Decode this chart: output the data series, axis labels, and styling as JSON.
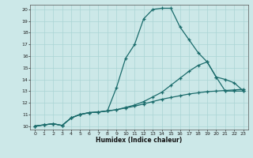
{
  "xlabel": "Humidex (Indice chaleur)",
  "bg_color": "#cce8e8",
  "grid_color": "#aad4d4",
  "line_color": "#1a6b6b",
  "xlim": [
    -0.5,
    23.5
  ],
  "ylim": [
    9.7,
    20.4
  ],
  "xticks": [
    0,
    1,
    2,
    3,
    4,
    5,
    6,
    7,
    8,
    9,
    10,
    11,
    12,
    13,
    14,
    15,
    16,
    17,
    18,
    19,
    20,
    21,
    22,
    23
  ],
  "yticks": [
    10,
    11,
    12,
    13,
    14,
    15,
    16,
    17,
    18,
    19,
    20
  ],
  "line1_x": [
    0,
    1,
    2,
    3,
    4,
    5,
    6,
    7,
    8,
    9,
    10,
    11,
    12,
    13,
    14,
    15,
    16,
    17,
    18,
    19,
    20,
    21,
    22,
    23
  ],
  "line1_y": [
    10.0,
    10.1,
    10.2,
    10.05,
    10.7,
    11.0,
    11.15,
    11.2,
    11.3,
    13.3,
    15.8,
    17.0,
    19.2,
    20.0,
    20.1,
    20.1,
    18.5,
    17.4,
    16.3,
    15.5,
    14.2,
    13.0,
    13.0,
    13.0
  ],
  "line2_x": [
    0,
    1,
    2,
    3,
    4,
    5,
    6,
    7,
    8,
    9,
    10,
    11,
    12,
    13,
    14,
    15,
    16,
    17,
    18,
    19,
    20,
    21,
    22,
    23
  ],
  "line2_y": [
    10.0,
    10.1,
    10.2,
    10.05,
    10.7,
    11.0,
    11.15,
    11.2,
    11.3,
    11.4,
    11.6,
    11.8,
    12.1,
    12.5,
    12.9,
    13.5,
    14.1,
    14.7,
    15.2,
    15.5,
    14.2,
    14.0,
    13.7,
    13.0
  ],
  "line3_x": [
    0,
    1,
    2,
    3,
    4,
    5,
    6,
    7,
    8,
    9,
    10,
    11,
    12,
    13,
    14,
    15,
    16,
    17,
    18,
    19,
    20,
    21,
    22,
    23
  ],
  "line3_y": [
    10.0,
    10.1,
    10.2,
    10.05,
    10.7,
    11.0,
    11.15,
    11.2,
    11.3,
    11.4,
    11.55,
    11.7,
    11.9,
    12.1,
    12.3,
    12.45,
    12.6,
    12.75,
    12.85,
    12.95,
    13.0,
    13.05,
    13.1,
    13.15
  ]
}
